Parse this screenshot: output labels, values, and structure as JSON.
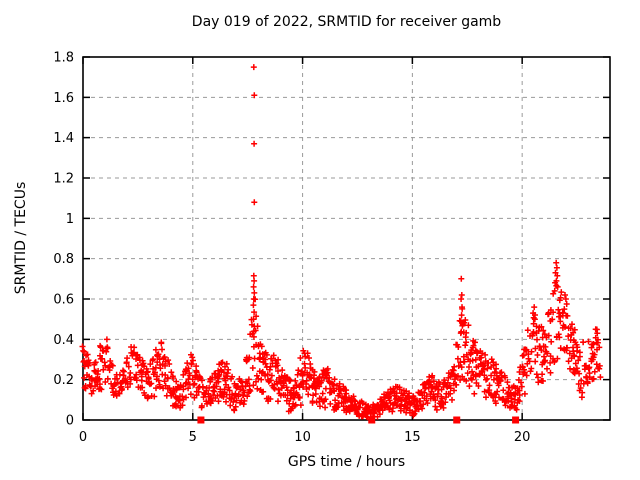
{
  "chart_data": {
    "type": "scatter",
    "title": "Day 019 of 2022, SRMTID for receiver gamb",
    "xlabel": "GPS time / hours",
    "ylabel": "SRMTID / TECUs",
    "xlim": [
      0,
      24
    ],
    "ylim": [
      0,
      1.8
    ],
    "xticks": [
      0,
      5,
      10,
      15,
      20
    ],
    "xtick_labels": [
      "0",
      "5",
      "10",
      "15",
      "20"
    ],
    "yticks": [
      0,
      0.2,
      0.4,
      0.6,
      0.8,
      1.0,
      1.2,
      1.4,
      1.6,
      1.8
    ],
    "ytick_labels": [
      "0",
      "0.2",
      "0.4",
      "0.6",
      "0.8",
      "1",
      "1.2",
      "1.4",
      "1.6",
      "1.8"
    ],
    "grid": {
      "show": true,
      "style": "dashed",
      "color": "#9a9a9a",
      "at": "major-ticks"
    },
    "legend": "none",
    "colors": {
      "points": "#ff0000",
      "axes": "#000000",
      "background": "#ffffff"
    },
    "series": [
      {
        "name": "SRMTID point cloud",
        "marker": "plus",
        "color": "#ff0000",
        "envelope_bands_h_lo_hi": [
          [
            0.0,
            0.14,
            0.38
          ],
          [
            0.2,
            0.16,
            0.34
          ],
          [
            0.4,
            0.12,
            0.28
          ],
          [
            0.7,
            0.13,
            0.3
          ],
          [
            0.9,
            0.16,
            0.44
          ],
          [
            1.1,
            0.15,
            0.4
          ],
          [
            1.3,
            0.12,
            0.3
          ],
          [
            1.6,
            0.08,
            0.22
          ],
          [
            1.9,
            0.1,
            0.26
          ],
          [
            2.2,
            0.14,
            0.4
          ],
          [
            2.45,
            0.12,
            0.34
          ],
          [
            2.7,
            0.1,
            0.3
          ],
          [
            3.0,
            0.1,
            0.26
          ],
          [
            3.3,
            0.12,
            0.36
          ],
          [
            3.6,
            0.14,
            0.4
          ],
          [
            3.85,
            0.1,
            0.33
          ],
          [
            4.1,
            0.06,
            0.22
          ],
          [
            4.4,
            0.04,
            0.16
          ],
          [
            4.7,
            0.08,
            0.28
          ],
          [
            4.9,
            0.1,
            0.34
          ],
          [
            5.1,
            0.07,
            0.28
          ],
          [
            5.35,
            0.05,
            0.22
          ],
          [
            5.6,
            0.04,
            0.18
          ],
          [
            5.9,
            0.05,
            0.22
          ],
          [
            6.2,
            0.07,
            0.28
          ],
          [
            6.45,
            0.09,
            0.32
          ],
          [
            6.7,
            0.06,
            0.24
          ],
          [
            7.0,
            0.04,
            0.18
          ],
          [
            7.3,
            0.06,
            0.24
          ],
          [
            7.55,
            0.1,
            0.38
          ],
          [
            7.78,
            0.12,
            0.7
          ],
          [
            8.0,
            0.1,
            0.4
          ],
          [
            8.25,
            0.1,
            0.36
          ],
          [
            8.5,
            0.08,
            0.32
          ],
          [
            8.8,
            0.09,
            0.33
          ],
          [
            9.1,
            0.06,
            0.24
          ],
          [
            9.4,
            0.04,
            0.2
          ],
          [
            9.7,
            0.05,
            0.22
          ],
          [
            10.0,
            0.07,
            0.36
          ],
          [
            10.2,
            0.08,
            0.38
          ],
          [
            10.45,
            0.06,
            0.26
          ],
          [
            10.7,
            0.05,
            0.22
          ],
          [
            11.0,
            0.06,
            0.26
          ],
          [
            11.2,
            0.06,
            0.28
          ],
          [
            11.5,
            0.04,
            0.2
          ],
          [
            11.8,
            0.04,
            0.17
          ],
          [
            12.1,
            0.03,
            0.14
          ],
          [
            12.4,
            0.02,
            0.11
          ],
          [
            12.7,
            0.01,
            0.09
          ],
          [
            13.0,
            0.01,
            0.07
          ],
          [
            13.3,
            0.01,
            0.09
          ],
          [
            13.6,
            0.02,
            0.12
          ],
          [
            13.9,
            0.03,
            0.15
          ],
          [
            14.2,
            0.04,
            0.18
          ],
          [
            14.5,
            0.04,
            0.16
          ],
          [
            14.8,
            0.03,
            0.14
          ],
          [
            15.1,
            0.02,
            0.12
          ],
          [
            15.35,
            0.03,
            0.15
          ],
          [
            15.6,
            0.06,
            0.22
          ],
          [
            15.85,
            0.07,
            0.24
          ],
          [
            16.1,
            0.05,
            0.2
          ],
          [
            16.35,
            0.05,
            0.18
          ],
          [
            16.6,
            0.07,
            0.24
          ],
          [
            16.9,
            0.09,
            0.3
          ],
          [
            17.1,
            0.12,
            0.45
          ],
          [
            17.25,
            0.15,
            0.6
          ],
          [
            17.45,
            0.14,
            0.48
          ],
          [
            17.7,
            0.12,
            0.4
          ],
          [
            18.0,
            0.12,
            0.38
          ],
          [
            18.3,
            0.1,
            0.36
          ],
          [
            18.6,
            0.09,
            0.32
          ],
          [
            18.9,
            0.07,
            0.27
          ],
          [
            19.2,
            0.05,
            0.22
          ],
          [
            19.5,
            0.03,
            0.16
          ],
          [
            19.75,
            0.05,
            0.2
          ],
          [
            20.0,
            0.09,
            0.32
          ],
          [
            20.25,
            0.14,
            0.45
          ],
          [
            20.5,
            0.18,
            0.55
          ],
          [
            20.75,
            0.17,
            0.46
          ],
          [
            21.0,
            0.19,
            0.48
          ],
          [
            21.25,
            0.22,
            0.55
          ],
          [
            21.5,
            0.28,
            0.72
          ],
          [
            21.65,
            0.28,
            0.7
          ],
          [
            21.9,
            0.24,
            0.6
          ],
          [
            22.15,
            0.2,
            0.5
          ],
          [
            22.4,
            0.14,
            0.45
          ],
          [
            22.65,
            0.08,
            0.4
          ],
          [
            22.9,
            0.1,
            0.38
          ],
          [
            23.15,
            0.16,
            0.42
          ],
          [
            23.4,
            0.2,
            0.45
          ],
          [
            23.6,
            0.18,
            0.34
          ]
        ],
        "outlier_points": [
          [
            7.78,
            1.75
          ],
          [
            7.8,
            1.61
          ],
          [
            7.79,
            1.37
          ],
          [
            7.8,
            1.08
          ],
          [
            7.78,
            0.715
          ],
          [
            7.79,
            0.69
          ],
          [
            7.77,
            0.66
          ],
          [
            7.8,
            0.63
          ],
          [
            7.78,
            0.6
          ],
          [
            7.76,
            0.57
          ],
          [
            7.79,
            0.535
          ],
          [
            7.77,
            0.5
          ],
          [
            7.8,
            0.465
          ],
          [
            7.78,
            0.44
          ],
          [
            17.23,
            0.7
          ],
          [
            17.25,
            0.62
          ],
          [
            17.22,
            0.6
          ],
          [
            17.26,
            0.56
          ],
          [
            17.24,
            0.52
          ],
          [
            17.21,
            0.49
          ],
          [
            17.55,
            0.47
          ],
          [
            20.55,
            0.56
          ],
          [
            20.5,
            0.53
          ],
          [
            20.58,
            0.5
          ],
          [
            21.55,
            0.78
          ],
          [
            21.58,
            0.755
          ],
          [
            21.52,
            0.73
          ],
          [
            21.6,
            0.715
          ],
          [
            21.56,
            0.69
          ],
          [
            21.62,
            0.66
          ],
          [
            21.48,
            0.64
          ],
          [
            21.95,
            0.62
          ],
          [
            21.99,
            0.6
          ],
          [
            22.03,
            0.575
          ],
          [
            21.92,
            0.55
          ],
          [
            23.35,
            0.45
          ],
          [
            23.42,
            0.43
          ]
        ]
      },
      {
        "name": "baseline event markers",
        "marker": "filled-square",
        "color": "#ff0000",
        "points": [
          [
            5.37,
            0
          ],
          [
            13.15,
            0
          ],
          [
            17.02,
            0
          ],
          [
            19.7,
            0
          ]
        ]
      }
    ]
  }
}
